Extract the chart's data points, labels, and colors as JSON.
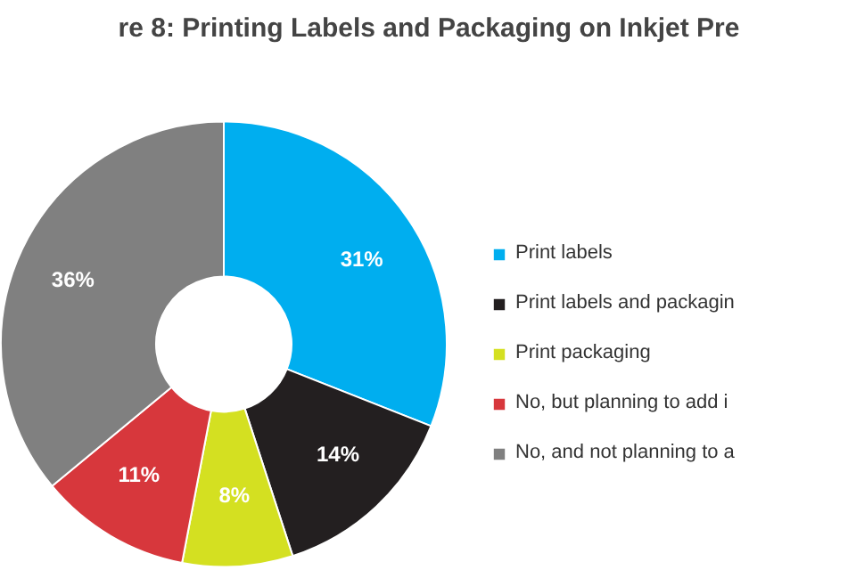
{
  "chart_data": {
    "type": "donut",
    "title": "re 8: Printing Labels and Packaging on Inkjet Pre",
    "categories": [
      "Print labels",
      "Print labels and packagin",
      "Print packaging",
      "No, but planning to add i",
      "No, and not planning to a"
    ],
    "values": [
      31,
      14,
      8,
      11,
      36
    ],
    "colors": [
      "#00aeef",
      "#231f20",
      "#d4e021",
      "#d7373c",
      "#808080"
    ],
    "value_labels": [
      "31%",
      "14%",
      "8%",
      "11%",
      "36%"
    ],
    "legend": "right"
  }
}
